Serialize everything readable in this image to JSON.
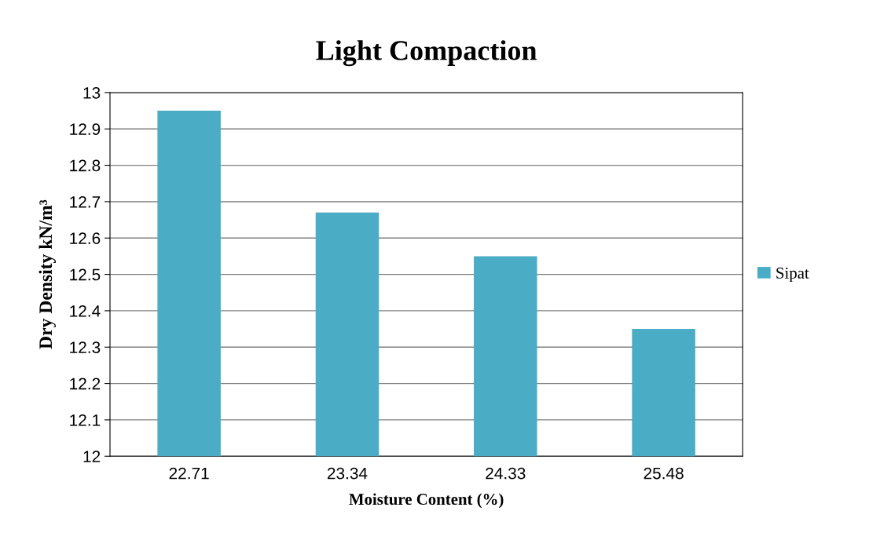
{
  "chart_data": {
    "type": "bar",
    "title": "Light Compaction",
    "xlabel": "Moisture Content (%)",
    "ylabel": "Dry Density kN/m³",
    "categories": [
      "22.71",
      "23.34",
      "24.33",
      "25.48"
    ],
    "series": [
      {
        "name": "Sipat",
        "color": "#4bacc6",
        "values": [
          12.95,
          12.67,
          12.55,
          12.35
        ]
      }
    ],
    "ylim": [
      12,
      13
    ],
    "yticks": [
      12,
      12.1,
      12.2,
      12.3,
      12.4,
      12.5,
      12.6,
      12.7,
      12.8,
      12.9,
      13
    ],
    "grid": "y",
    "legend": "right"
  }
}
